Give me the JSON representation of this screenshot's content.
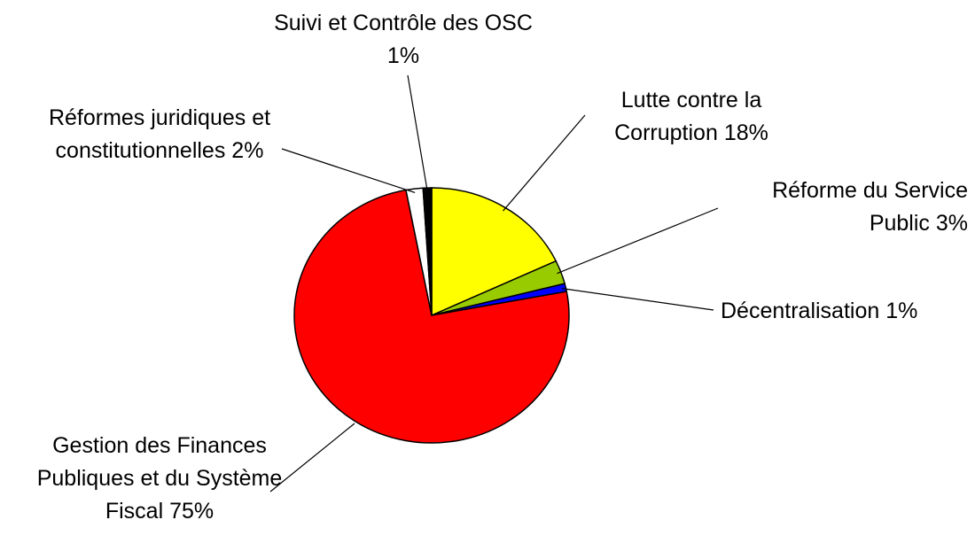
{
  "chart_data": {
    "type": "pie",
    "categories": [
      "Lutte contre la Corruption",
      "Réforme du Service Public",
      "Décentralisation",
      "Gestion des Finances Publiques et du Système Fiscal",
      "Réformes juridiques et constitutionnelles",
      "Suivi et Contrôle des OSC"
    ],
    "values": [
      18,
      3,
      1,
      75,
      2,
      1
    ],
    "value_labels": [
      "18%",
      "3%",
      "1%",
      "75%",
      "2%",
      "1%"
    ],
    "colors": [
      "#ffff00",
      "#99cc00",
      "#0000ff",
      "#ff0000",
      "#ffffff",
      "#000000"
    ]
  }
}
